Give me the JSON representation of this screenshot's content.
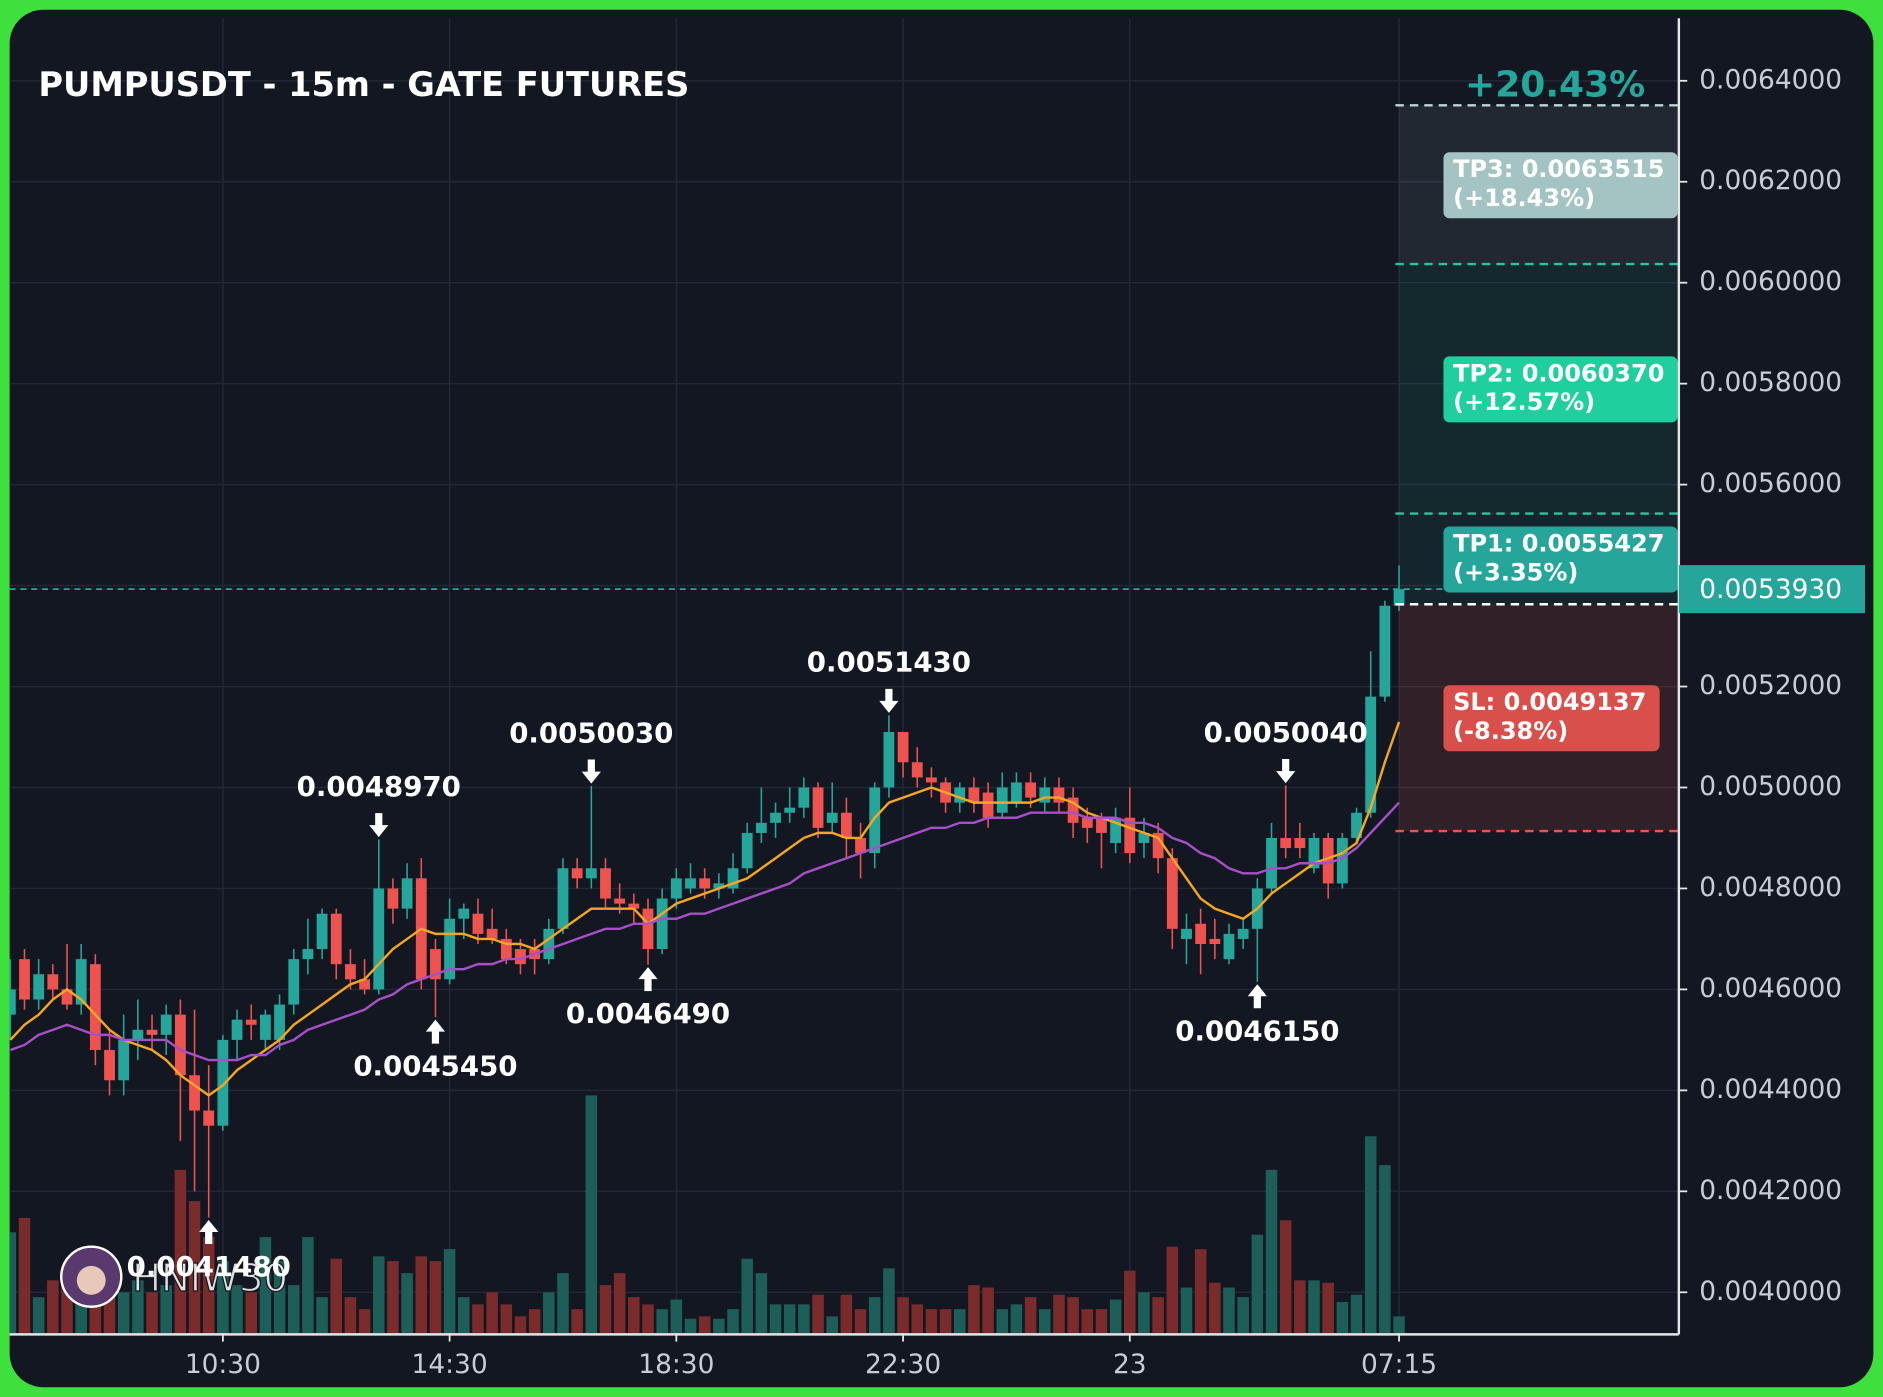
{
  "chart_data": {
    "type": "candlestick",
    "title": "PUMPUSDT - 15m - GATE FUTURES",
    "top_label": "+20.43%",
    "watermark": "HNIW30",
    "categories": [
      null,
      null,
      null,
      null,
      null,
      null,
      null,
      null,
      null,
      null,
      null,
      null,
      null,
      null,
      null,
      "10:30",
      null,
      null,
      null,
      null,
      null,
      null,
      null,
      null,
      null,
      null,
      null,
      null,
      null,
      null,
      null,
      "14:30",
      null,
      null,
      null,
      null,
      null,
      null,
      null,
      null,
      null,
      null,
      null,
      null,
      null,
      null,
      null,
      "18:30",
      null,
      null,
      null,
      null,
      null,
      null,
      null,
      null,
      null,
      null,
      null,
      null,
      null,
      null,
      null,
      "22:30",
      null,
      null,
      null,
      null,
      null,
      null,
      null,
      null,
      null,
      null,
      null,
      null,
      null,
      null,
      null,
      "23",
      null,
      null,
      null,
      null,
      null,
      null,
      null,
      null,
      null,
      null,
      null,
      null,
      null,
      null,
      null,
      null,
      null,
      null,
      "07:15"
    ],
    "candles": [
      [
        0.00455,
        0.00466,
        0.0045,
        0.0046
      ],
      [
        0.00466,
        0.00468,
        0.00456,
        0.00458
      ],
      [
        0.00458,
        0.00466,
        0.00456,
        0.00463
      ],
      [
        0.00463,
        0.00465,
        0.00458,
        0.0046
      ],
      [
        0.0046,
        0.00469,
        0.00456,
        0.00457
      ],
      [
        0.00457,
        0.00469,
        0.00455,
        0.00466
      ],
      [
        0.00465,
        0.00467,
        0.00445,
        0.00448
      ],
      [
        0.00448,
        0.00452,
        0.00439,
        0.00442
      ],
      [
        0.00442,
        0.00455,
        0.00439,
        0.0045
      ],
      [
        0.0045,
        0.00458,
        0.00446,
        0.00452
      ],
      [
        0.00452,
        0.00455,
        0.00448,
        0.00451
      ],
      [
        0.00451,
        0.00457,
        0.00447,
        0.00455
      ],
      [
        0.00455,
        0.00458,
        0.0043,
        0.00443
      ],
      [
        0.00443,
        0.00456,
        0.0042,
        0.00436
      ],
      [
        0.00436,
        0.00445,
        0.004148,
        0.00433
      ],
      [
        0.00433,
        0.00451,
        0.00432,
        0.0045
      ],
      [
        0.0045,
        0.00456,
        0.00446,
        0.00454
      ],
      [
        0.00454,
        0.00457,
        0.0045,
        0.00453
      ],
      [
        0.0045,
        0.00456,
        0.00448,
        0.00455
      ],
      [
        0.0045,
        0.00459,
        0.00448,
        0.00457
      ],
      [
        0.00457,
        0.00468,
        0.00455,
        0.00466
      ],
      [
        0.00466,
        0.00474,
        0.00463,
        0.00468
      ],
      [
        0.00468,
        0.00476,
        0.00466,
        0.00475
      ],
      [
        0.00475,
        0.00476,
        0.00462,
        0.00465
      ],
      [
        0.00465,
        0.00468,
        0.0046,
        0.00462
      ],
      [
        0.00462,
        0.00466,
        0.00459,
        0.0046
      ],
      [
        0.0046,
        0.004897,
        0.00459,
        0.0048
      ],
      [
        0.0048,
        0.00482,
        0.00473,
        0.00476
      ],
      [
        0.00476,
        0.00485,
        0.00474,
        0.00482
      ],
      [
        0.00482,
        0.00486,
        0.0046,
        0.00462
      ],
      [
        0.00468,
        0.0047,
        0.004545,
        0.00462
      ],
      [
        0.00462,
        0.00478,
        0.00461,
        0.00474
      ],
      [
        0.00474,
        0.00477,
        0.0047,
        0.00476
      ],
      [
        0.00475,
        0.00478,
        0.00469,
        0.00471
      ],
      [
        0.00472,
        0.00476,
        0.00469,
        0.0047
      ],
      [
        0.0047,
        0.00472,
        0.00465,
        0.00466
      ],
      [
        0.00468,
        0.0047,
        0.00463,
        0.00465
      ],
      [
        0.00468,
        0.0047,
        0.00463,
        0.00466
      ],
      [
        0.00466,
        0.00474,
        0.00465,
        0.00472
      ],
      [
        0.00472,
        0.00486,
        0.00471,
        0.00484
      ],
      [
        0.00484,
        0.00486,
        0.0048,
        0.00482
      ],
      [
        0.00482,
        0.005003,
        0.0048,
        0.00484
      ],
      [
        0.00484,
        0.00486,
        0.00476,
        0.00478
      ],
      [
        0.00478,
        0.00481,
        0.00475,
        0.00477
      ],
      [
        0.00477,
        0.00479,
        0.00473,
        0.00476
      ],
      [
        0.00476,
        0.00478,
        0.004649,
        0.00468
      ],
      [
        0.00468,
        0.0048,
        0.00467,
        0.00478
      ],
      [
        0.00478,
        0.00484,
        0.00476,
        0.00482
      ],
      [
        0.0048,
        0.00485,
        0.00479,
        0.00482
      ],
      [
        0.00482,
        0.00484,
        0.00478,
        0.0048
      ],
      [
        0.0048,
        0.00483,
        0.00478,
        0.00481
      ],
      [
        0.0048,
        0.00487,
        0.00479,
        0.00484
      ],
      [
        0.00484,
        0.00493,
        0.00483,
        0.00491
      ],
      [
        0.00491,
        0.005,
        0.00489,
        0.00493
      ],
      [
        0.00493,
        0.00497,
        0.0049,
        0.00495
      ],
      [
        0.00495,
        0.005,
        0.00493,
        0.00496
      ],
      [
        0.00496,
        0.00502,
        0.00494,
        0.005
      ],
      [
        0.005,
        0.00501,
        0.0049,
        0.00492
      ],
      [
        0.00493,
        0.00501,
        0.00491,
        0.00495
      ],
      [
        0.00495,
        0.00498,
        0.00486,
        0.0049
      ],
      [
        0.0049,
        0.00493,
        0.00482,
        0.00487
      ],
      [
        0.00487,
        0.00501,
        0.00484,
        0.005
      ],
      [
        0.005,
        0.005143,
        0.00498,
        0.00511
      ],
      [
        0.00511,
        0.00511,
        0.00502,
        0.00505
      ],
      [
        0.00505,
        0.00508,
        0.005,
        0.00502
      ],
      [
        0.00502,
        0.00504,
        0.00498,
        0.00501
      ],
      [
        0.00501,
        0.00502,
        0.00495,
        0.00497
      ],
      [
        0.00497,
        0.00501,
        0.00495,
        0.005
      ],
      [
        0.005,
        0.00502,
        0.00495,
        0.00497
      ],
      [
        0.00499,
        0.00501,
        0.00492,
        0.00494
      ],
      [
        0.00495,
        0.00503,
        0.00494,
        0.005
      ],
      [
        0.00497,
        0.00503,
        0.00496,
        0.00501
      ],
      [
        0.00501,
        0.00503,
        0.00496,
        0.00498
      ],
      [
        0.00497,
        0.00502,
        0.00495,
        0.005
      ],
      [
        0.005,
        0.00502,
        0.00495,
        0.00497
      ],
      [
        0.00498,
        0.005,
        0.0049,
        0.00493
      ],
      [
        0.00494,
        0.00496,
        0.00489,
        0.00492
      ],
      [
        0.00494,
        0.00495,
        0.00484,
        0.00491
      ],
      [
        0.00489,
        0.00496,
        0.00487,
        0.00494
      ],
      [
        0.00494,
        0.005,
        0.00485,
        0.00487
      ],
      [
        0.00489,
        0.00494,
        0.00486,
        0.00491
      ],
      [
        0.00491,
        0.00493,
        0.00483,
        0.00486
      ],
      [
        0.00486,
        0.00488,
        0.00468,
        0.00472
      ],
      [
        0.0047,
        0.00475,
        0.00465,
        0.00472
      ],
      [
        0.00473,
        0.00476,
        0.00463,
        0.00469
      ],
      [
        0.0047,
        0.00474,
        0.00466,
        0.00469
      ],
      [
        0.00466,
        0.00473,
        0.00465,
        0.00471
      ],
      [
        0.0047,
        0.00474,
        0.00468,
        0.00472
      ],
      [
        0.00472,
        0.00482,
        0.004615,
        0.0048
      ],
      [
        0.0048,
        0.00493,
        0.00479,
        0.0049
      ],
      [
        0.0049,
        0.005004,
        0.00486,
        0.00488
      ],
      [
        0.0049,
        0.00493,
        0.00486,
        0.00488
      ],
      [
        0.00484,
        0.00491,
        0.00483,
        0.0049
      ],
      [
        0.0049,
        0.00491,
        0.00478,
        0.00481
      ],
      [
        0.00481,
        0.00491,
        0.0048,
        0.0049
      ],
      [
        0.0049,
        0.00496,
        0.00489,
        0.00495
      ],
      [
        0.00495,
        0.00527,
        0.00494,
        0.00518
      ],
      [
        0.00518,
        0.00537,
        0.00517,
        0.00536
      ],
      [
        0.00536,
        0.00544,
        0.00535,
        0.005393
      ]
    ],
    "up_color": "#26a69a",
    "down_color": "#ef5350",
    "volume": [
      42,
      48,
      15,
      22,
      20,
      25,
      20,
      15,
      17,
      22,
      17,
      20,
      68,
      55,
      40,
      30,
      20,
      17,
      40,
      30,
      20,
      40,
      15,
      31,
      15,
      10,
      32,
      30,
      25,
      32,
      30,
      35,
      15,
      12,
      17,
      12,
      7,
      10,
      17,
      25,
      10,
      99,
      20,
      25,
      15,
      12,
      10,
      14,
      6,
      7,
      6,
      10,
      31,
      25,
      12,
      12,
      12,
      16,
      7,
      16,
      10,
      15,
      27,
      15,
      12,
      10,
      10,
      10,
      20,
      19,
      10,
      12,
      15,
      10,
      16,
      15,
      10,
      10,
      14,
      26,
      17,
      15,
      36,
      19,
      35,
      21,
      19,
      15,
      41,
      68,
      47,
      22,
      22,
      21,
      13,
      16,
      82,
      70,
      7
    ],
    "volume_lim": [
      0,
      100
    ],
    "volume_up_color": "#1d5e58",
    "volume_down_color": "#7a2b2b",
    "lines": [
      {
        "color": "#f5a623",
        "values": [
          0.0045,
          0.00453,
          0.00455,
          0.00458,
          0.0046,
          0.00458,
          0.00455,
          0.00452,
          0.0045,
          0.00449,
          0.00448,
          0.00446,
          0.00443,
          0.00441,
          0.00439,
          0.00441,
          0.00444,
          0.00446,
          0.00448,
          0.0045,
          0.00453,
          0.00455,
          0.00457,
          0.00459,
          0.00461,
          0.00462,
          0.00465,
          0.00468,
          0.0047,
          0.00472,
          0.00471,
          0.00471,
          0.00471,
          0.0047,
          0.0047,
          0.00469,
          0.00469,
          0.00468,
          0.0047,
          0.00472,
          0.00474,
          0.00476,
          0.00476,
          0.00476,
          0.00476,
          0.00473,
          0.00475,
          0.00477,
          0.00478,
          0.00479,
          0.0048,
          0.00481,
          0.00482,
          0.00484,
          0.00486,
          0.00488,
          0.0049,
          0.00491,
          0.00491,
          0.0049,
          0.0049,
          0.00494,
          0.00497,
          0.00498,
          0.00499,
          0.005,
          0.00499,
          0.00498,
          0.00497,
          0.00497,
          0.00497,
          0.00497,
          0.00497,
          0.00498,
          0.00498,
          0.00497,
          0.00495,
          0.00494,
          0.00493,
          0.00492,
          0.00491,
          0.0049,
          0.00486,
          0.00482,
          0.00478,
          0.00476,
          0.00475,
          0.00474,
          0.00476,
          0.00479,
          0.00481,
          0.00483,
          0.00485,
          0.00486,
          0.00487,
          0.00489,
          0.00496,
          0.00505,
          0.00513
        ]
      },
      {
        "color": "#a64fc7",
        "values": [
          0.00448,
          0.00449,
          0.00451,
          0.00452,
          0.00453,
          0.00452,
          0.00451,
          0.00451,
          0.0045,
          0.0045,
          0.0045,
          0.0045,
          0.00448,
          0.00447,
          0.00446,
          0.00446,
          0.00446,
          0.00447,
          0.00447,
          0.00449,
          0.0045,
          0.00452,
          0.00453,
          0.00454,
          0.00455,
          0.00456,
          0.00458,
          0.00459,
          0.00461,
          0.00462,
          0.00463,
          0.00464,
          0.00464,
          0.00465,
          0.00465,
          0.00466,
          0.00466,
          0.00467,
          0.00468,
          0.00469,
          0.0047,
          0.00471,
          0.00472,
          0.00472,
          0.00473,
          0.00473,
          0.00474,
          0.00474,
          0.00475,
          0.00475,
          0.00476,
          0.00477,
          0.00478,
          0.00479,
          0.0048,
          0.00481,
          0.00483,
          0.00484,
          0.00485,
          0.00486,
          0.00487,
          0.00488,
          0.00489,
          0.0049,
          0.00491,
          0.00492,
          0.00492,
          0.00493,
          0.00493,
          0.00494,
          0.00494,
          0.00494,
          0.00495,
          0.00495,
          0.00495,
          0.00495,
          0.00494,
          0.00494,
          0.00494,
          0.00493,
          0.00493,
          0.00492,
          0.0049,
          0.00489,
          0.00487,
          0.00486,
          0.00484,
          0.00483,
          0.00483,
          0.00484,
          0.00484,
          0.00485,
          0.00485,
          0.00485,
          0.00486,
          0.00488,
          0.00491,
          0.00494,
          0.00497
        ]
      }
    ],
    "annotations": [
      {
        "text": "0.0048970",
        "value": 0.004897,
        "at": 26,
        "kind": "high"
      },
      {
        "text": "0.0045450",
        "value": 0.004545,
        "at": 30,
        "kind": "low"
      },
      {
        "text": "0.0050030",
        "value": 0.005003,
        "at": 41,
        "kind": "high"
      },
      {
        "text": "0.0046490",
        "value": 0.004649,
        "at": 45,
        "kind": "low"
      },
      {
        "text": "0.0051430",
        "value": 0.005143,
        "at": 62,
        "kind": "high"
      },
      {
        "text": "0.0050040",
        "value": 0.005004,
        "at": 90,
        "kind": "high"
      },
      {
        "text": "0.0046150",
        "value": 0.004615,
        "at": 88,
        "kind": "low"
      },
      {
        "text": "0.0041480",
        "value": 0.004148,
        "at": 14,
        "kind": "low"
      }
    ],
    "entry": 0.005363,
    "levels": [
      {
        "label": "TP3: 0.0063515",
        "change": "(+18.43%)",
        "value": 0.0063515,
        "color": "#a3c4c2",
        "line_color": "#b8d8d4"
      },
      {
        "label": "TP2: 0.0060370",
        "change": "(+12.57%)",
        "value": 0.006037,
        "color": "#1fcf9e",
        "line_color": "#26c6a0"
      },
      {
        "label": "TP1: 0.0055427",
        "change": "(+3.35%)",
        "value": 0.0055427,
        "color": "#26a69a",
        "line_color": "#26c6a0"
      },
      {
        "label": "SL: 0.0049137",
        "change": "(-8.38%)",
        "value": 0.0049137,
        "color": "#d94f4b",
        "line_color": "#ef5350"
      }
    ],
    "last_price": {
      "value": 0.005393,
      "label": "0.0053930",
      "color": "#26a69a"
    },
    "ylim": [
      0.003919,
      0.006524
    ],
    "yticks": [
      {
        "value": 0.004,
        "label": "0.0040000"
      },
      {
        "value": 0.0042,
        "label": "0.0042000"
      },
      {
        "value": 0.0044,
        "label": "0.0044000"
      },
      {
        "value": 0.0046,
        "label": "0.0046000"
      },
      {
        "value": 0.0048,
        "label": "0.0048000"
      },
      {
        "value": 0.005,
        "label": "0.0050000"
      },
      {
        "value": 0.0052,
        "label": "0.0052000"
      },
      {
        "value": 0.0054,
        "label": "0.0054000"
      },
      {
        "value": 0.0056,
        "label": "0.0056000"
      },
      {
        "value": 0.0058,
        "label": "0.0058000"
      },
      {
        "value": 0.006,
        "label": "0.0060000"
      },
      {
        "value": 0.0062,
        "label": "0.0062000"
      },
      {
        "value": 0.0064,
        "label": "0.0064000"
      }
    ],
    "grid": true
  }
}
